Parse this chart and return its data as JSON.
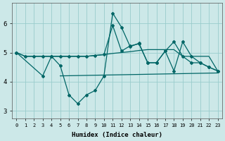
{
  "xlabel": "Humidex (Indice chaleur)",
  "background_color": "#cce8e8",
  "grid_color": "#99cccc",
  "line_color": "#006666",
  "xlim": [
    -0.5,
    23.5
  ],
  "ylim": [
    2.75,
    6.7
  ],
  "yticks": [
    3,
    4,
    5,
    6
  ],
  "xticks": [
    0,
    1,
    2,
    3,
    4,
    5,
    6,
    7,
    8,
    9,
    10,
    11,
    12,
    13,
    14,
    15,
    16,
    17,
    18,
    19,
    20,
    21,
    22,
    23
  ],
  "line_smooth_x": [
    0,
    1,
    2,
    3,
    4,
    5,
    6,
    7,
    8,
    9,
    10,
    11,
    12,
    13,
    14,
    15,
    16,
    17,
    18,
    19,
    20,
    21,
    22,
    23
  ],
  "line_smooth_y": [
    5.0,
    4.87,
    4.87,
    4.87,
    4.87,
    4.87,
    4.87,
    4.87,
    4.87,
    4.9,
    4.93,
    4.97,
    5.0,
    5.03,
    5.07,
    5.1,
    5.1,
    5.1,
    5.1,
    4.87,
    4.87,
    4.87,
    4.87,
    4.37
  ],
  "line_upper_x": [
    0,
    1,
    2,
    3,
    4,
    5,
    6,
    7,
    8,
    9,
    10,
    11,
    12,
    13,
    14,
    15,
    16,
    17,
    18,
    19,
    20,
    21,
    22,
    23
  ],
  "line_upper_y": [
    5.0,
    4.87,
    4.87,
    4.87,
    4.87,
    4.87,
    4.87,
    4.87,
    4.87,
    4.9,
    4.93,
    5.93,
    5.05,
    5.23,
    5.3,
    4.65,
    4.65,
    5.05,
    5.37,
    4.87,
    4.65,
    4.65,
    4.5,
    4.37
  ],
  "line_zigzag_x": [
    0,
    3,
    4,
    5,
    6,
    7,
    8,
    9,
    10,
    11,
    12,
    13,
    14,
    15,
    16,
    17,
    18,
    19,
    20,
    21,
    22,
    23
  ],
  "line_zigzag_y": [
    5.0,
    4.2,
    4.87,
    4.55,
    3.55,
    3.25,
    3.55,
    3.7,
    4.2,
    6.35,
    5.87,
    5.2,
    5.32,
    4.65,
    4.65,
    5.05,
    4.37,
    5.37,
    4.87,
    4.65,
    4.5,
    4.37
  ],
  "flat_line_x": [
    5,
    23
  ],
  "flat_line_y": [
    4.2,
    4.3
  ]
}
